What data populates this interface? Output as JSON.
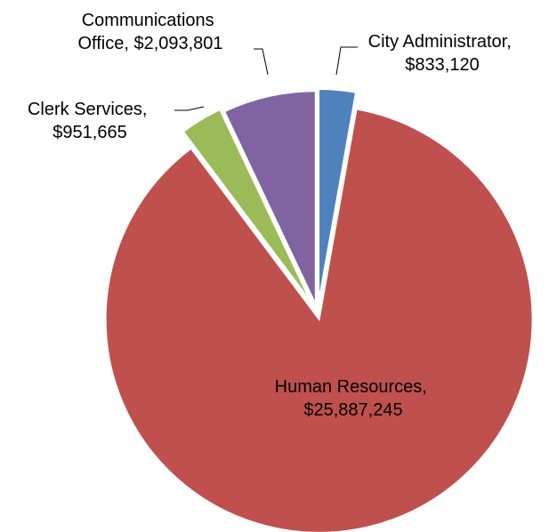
{
  "chart_data": {
    "type": "pie",
    "title": "",
    "slices": [
      {
        "label": "City Administrator",
        "value": 833120,
        "value_text": "$833,120",
        "color": "#4F81BD"
      },
      {
        "label": "Human Resources",
        "value": 25887245,
        "value_text": "$25,887,245",
        "color": "#C0504D"
      },
      {
        "label": "Clerk Services",
        "value": 951665,
        "value_text": "$951,665",
        "color": "#9BBB59"
      },
      {
        "label": "Communications Office",
        "value": 2093801,
        "value_text": "$2,093,801",
        "color": "#8064A2"
      }
    ],
    "start_angle": "12 o'clock",
    "direction": "clockwise",
    "exploded": true,
    "legend": "none",
    "data_labels": [
      {
        "lines": [
          "City Administrator,",
          "$833,120"
        ]
      },
      {
        "lines": [
          "Human Resources,",
          "$25,887,245"
        ]
      },
      {
        "lines": [
          "Clerk Services,",
          "$951,665"
        ]
      },
      {
        "lines": [
          "Communications",
          "Office, $2,093,801"
        ]
      }
    ]
  }
}
